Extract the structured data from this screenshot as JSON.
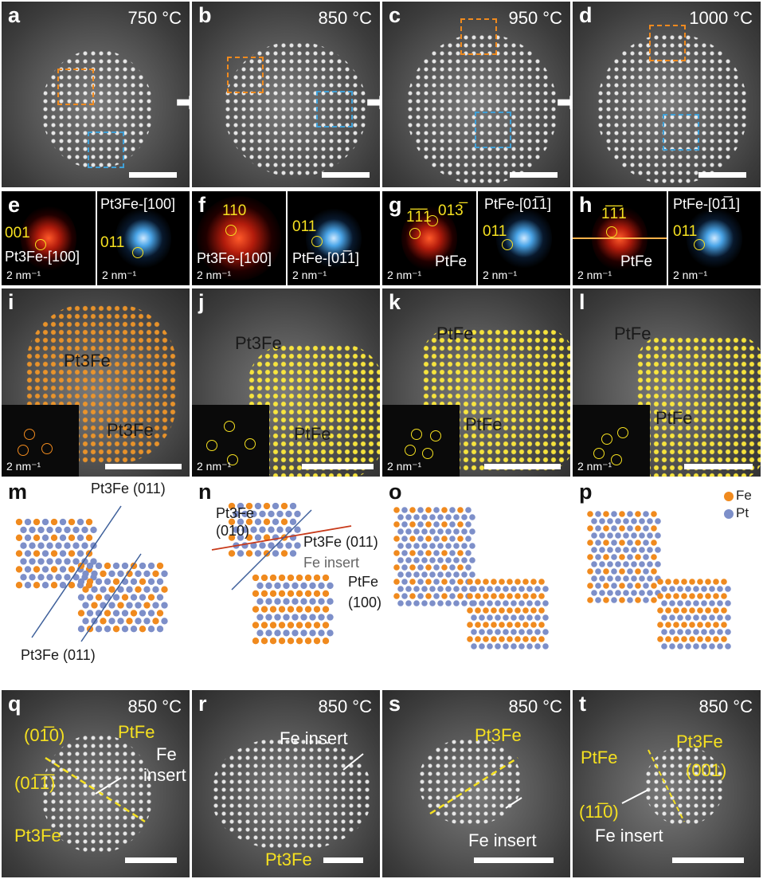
{
  "row1": [
    {
      "label": "a",
      "temp": "750 °C"
    },
    {
      "label": "b",
      "temp": "850 °C"
    },
    {
      "label": "c",
      "temp": "950 °C"
    },
    {
      "label": "d",
      "temp": "1000 °C"
    }
  ],
  "row2": {
    "e": {
      "label": "e",
      "idx1": "001",
      "caption": "Pt3Fe-[100]",
      "title2": "Pt3Fe-[100]",
      "idx2": "011",
      "sb": "2 nm⁻¹"
    },
    "f": {
      "label": "f",
      "idx1": "110",
      "caption": "Pt3Fe-[100]",
      "idx2": "011",
      "caption2": "PtFe-[01̅1]",
      "sb": "2 nm⁻¹"
    },
    "g": {
      "label": "g",
      "idx1": "1̅1̅1",
      "idx1b": "013̅",
      "caption": "PtFe",
      "title2": "PtFe-[01̅1]",
      "idx2": "011",
      "sb": "2 nm⁻¹"
    },
    "h": {
      "label": "h",
      "idx1": "1̅1̅1",
      "caption": "PtFe",
      "title2": "PtFe-[01̅1]",
      "idx2": "011",
      "sb": "2 nm⁻¹"
    }
  },
  "row3": [
    {
      "label": "i",
      "t1": "Pt3Fe",
      "t2": "Pt3Fe",
      "sb": "2 nm⁻¹"
    },
    {
      "label": "j",
      "t1": "Pt3Fe",
      "t2": "PtFe",
      "sb": "2 nm⁻¹"
    },
    {
      "label": "k",
      "t1": "PtFe",
      "t2": "PtFe",
      "sb": "2 nm⁻¹"
    },
    {
      "label": "l",
      "t1": "PtFe",
      "t2": "PtFe",
      "sb": "2 nm⁻¹"
    }
  ],
  "row4": {
    "m": {
      "label": "m",
      "plane1": "Pt3Fe (011)",
      "plane2": "Pt3Fe (011)"
    },
    "n": {
      "label": "n",
      "p1": "Pt3Fe",
      "p1b": "(010)",
      "p2": "Pt3Fe (011)",
      "p3": "Fe insert",
      "p4": "PtFe",
      "p4b": "(100)"
    },
    "o": {
      "label": "o"
    },
    "p": {
      "label": "p",
      "legend_fe": "Fe",
      "legend_pt": "Pt"
    }
  },
  "row5": [
    {
      "label": "q",
      "temp": "850 °C",
      "a": "(01̅0)",
      "b": "(01̅1̅)",
      "c": "PtFe",
      "d": "Fe",
      "e": "insert",
      "f": "Pt3Fe"
    },
    {
      "label": "r",
      "temp": "850 °C",
      "a": "Fe insert",
      "b": "Pt3Fe"
    },
    {
      "label": "s",
      "temp": "850 °C",
      "a": "Pt3Fe",
      "b": "Fe insert"
    },
    {
      "label": "t",
      "temp": "850 °C",
      "a": "PtFe",
      "b": "Pt3Fe",
      "c": "(001)",
      "d": "(11̅0)",
      "e": "Fe insert"
    }
  ],
  "colors": {
    "fe": "#f08a1e",
    "pt": "#7d8fc9",
    "label_yellow": "#f5e020"
  }
}
